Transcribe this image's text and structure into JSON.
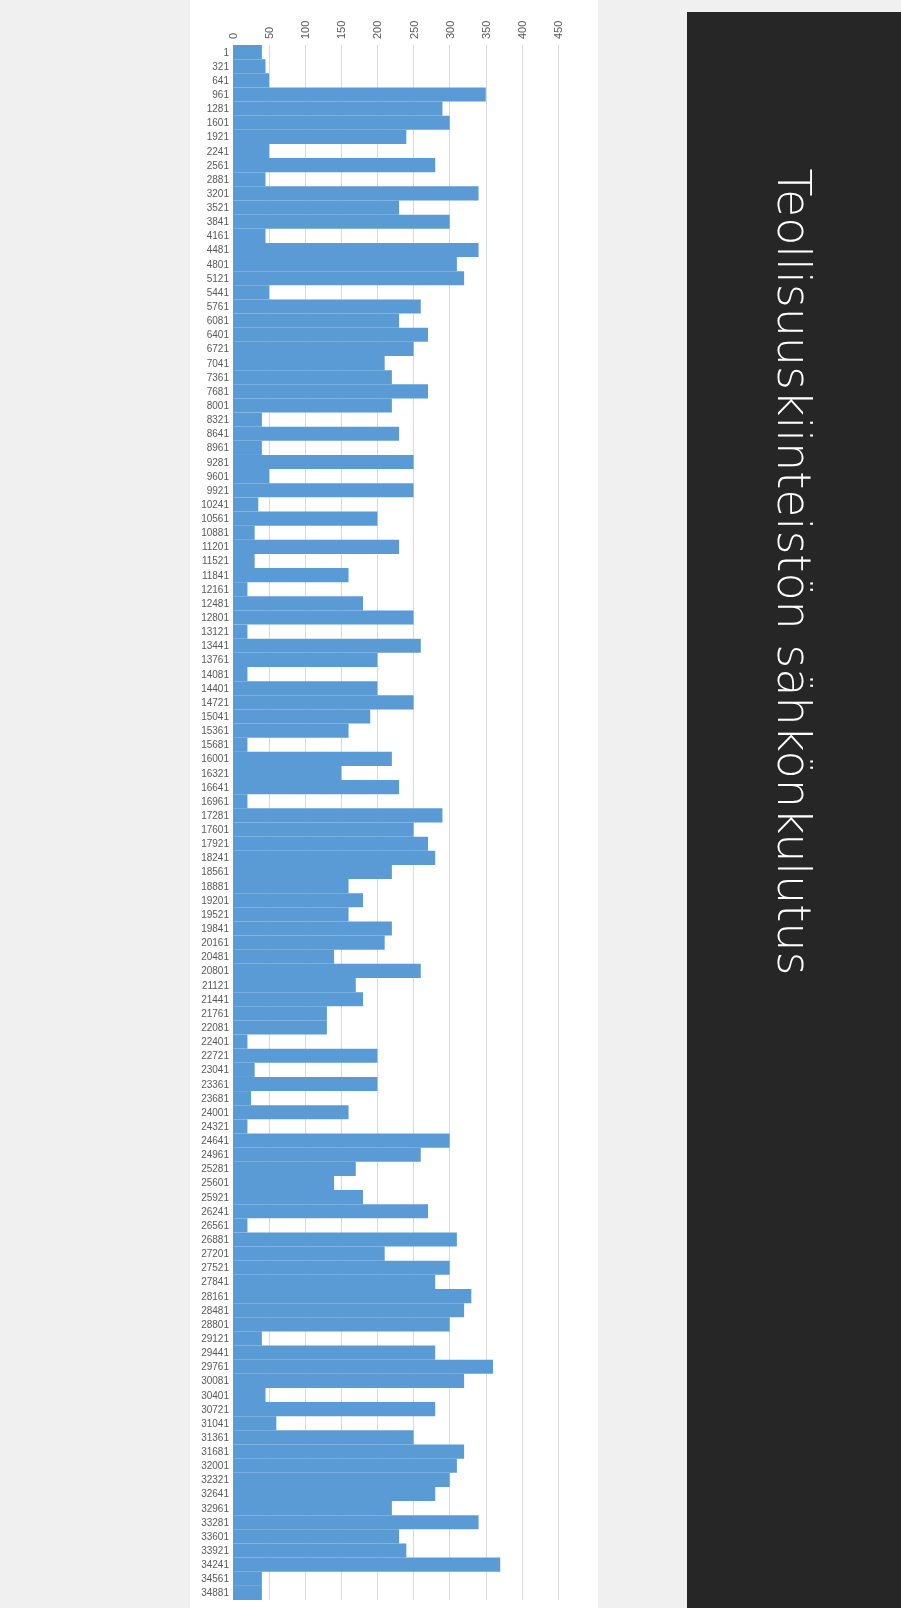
{
  "chart_data": {
    "type": "bar",
    "orientation": "horizontal",
    "title": "Teollisuuskiinteistön sähkönkulutus",
    "color": "#5b9bd5",
    "grid": "x",
    "xlim": [
      0,
      450
    ],
    "xticks": [
      0,
      50,
      100,
      150,
      200,
      250,
      300,
      350,
      400,
      450
    ],
    "categories": [
      "1",
      "321",
      "641",
      "961",
      "1281",
      "1601",
      "1921",
      "2241",
      "2561",
      "2881",
      "3201",
      "3521",
      "3841",
      "4161",
      "4481",
      "4801",
      "5121",
      "5441",
      "5761",
      "6081",
      "6401",
      "6721",
      "7041",
      "7361",
      "7681",
      "8001",
      "8321",
      "8641",
      "8961",
      "9281",
      "9601",
      "9921",
      "10241",
      "10561",
      "10881",
      "11201",
      "11521",
      "11841",
      "12161",
      "12481",
      "12801",
      "13121",
      "13441",
      "13761",
      "14081",
      "14401",
      "14721",
      "15041",
      "15361",
      "15681",
      "16001",
      "16321",
      "16641",
      "16961",
      "17281",
      "17601",
      "17921",
      "18241",
      "18561",
      "18881",
      "19201",
      "19521",
      "19841",
      "20161",
      "20481",
      "20801",
      "21121",
      "21441",
      "21761",
      "22081",
      "22401",
      "22721",
      "23041",
      "23361",
      "23681",
      "24001",
      "24321",
      "24641",
      "24961",
      "25281",
      "25601",
      "25921",
      "26241",
      "26561",
      "26881",
      "27201",
      "27521",
      "27841",
      "28161",
      "28481",
      "28801",
      "29121",
      "29441",
      "29761",
      "30081",
      "30401",
      "30721",
      "31041",
      "31361",
      "31681",
      "32001",
      "32321",
      "32641",
      "32961",
      "33281",
      "33601",
      "33921",
      "34241",
      "34561",
      "34881"
    ],
    "values": [
      40,
      45,
      50,
      350,
      290,
      300,
      240,
      50,
      280,
      45,
      340,
      230,
      300,
      45,
      340,
      310,
      320,
      50,
      260,
      230,
      270,
      250,
      210,
      220,
      270,
      220,
      40,
      230,
      40,
      250,
      50,
      250,
      35,
      200,
      30,
      230,
      30,
      160,
      20,
      180,
      250,
      20,
      260,
      200,
      20,
      200,
      250,
      190,
      160,
      20,
      220,
      150,
      230,
      20,
      290,
      250,
      270,
      280,
      220,
      160,
      180,
      160,
      220,
      210,
      140,
      260,
      170,
      180,
      130,
      130,
      20,
      200,
      30,
      200,
      25,
      160,
      20,
      300,
      260,
      170,
      140,
      180,
      270,
      20,
      310,
      210,
      300,
      280,
      330,
      320,
      300,
      40,
      280,
      360,
      320,
      45,
      280,
      60,
      250,
      320,
      310,
      300,
      280,
      220,
      340,
      230,
      240,
      370,
      40,
      40
    ]
  }
}
